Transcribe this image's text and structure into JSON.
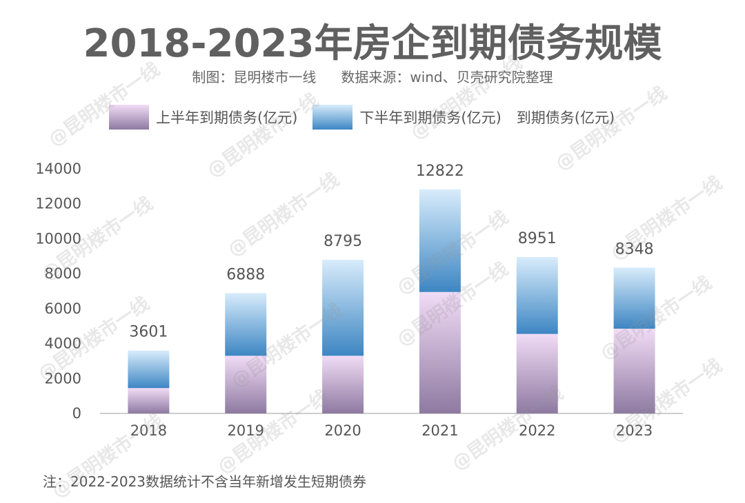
{
  "title": "2018-2023年房企到期债务规模",
  "subtitle": {
    "maker": "制图：昆明楼市一线",
    "source": "数据来源：wind、贝壳研究院整理"
  },
  "watermark": "@昆明楼市一线",
  "note": "注：2022-2023数据统计不含当年新增发生短期债券",
  "colors": {
    "h1_top": "#f1dcf6",
    "h1_bottom": "#8e7aa1",
    "h2_top": "#d8ecfb",
    "h2_bottom": "#3d86c3",
    "axis": "#bdbdbd",
    "text": "#555555"
  },
  "chart_data": {
    "type": "bar",
    "stacked": true,
    "title": "2018-2023年房企到期债务规模",
    "categories": [
      "2018",
      "2019",
      "2020",
      "2021",
      "2022",
      "2023"
    ],
    "series": [
      {
        "name": "上半年到期债务(亿元)",
        "values": [
          1450,
          3300,
          3300,
          6950,
          4550,
          4850
        ]
      },
      {
        "name": "下半年到期债务(亿元)",
        "values": [
          2151,
          3588,
          5495,
          5872,
          4401,
          3498
        ]
      }
    ],
    "totals_name": "到期债务(亿元)",
    "totals": [
      3601,
      6888,
      8795,
      12822,
      8951,
      8348
    ],
    "yticks": [
      0,
      2000,
      4000,
      6000,
      8000,
      10000,
      12000,
      14000
    ],
    "ylim": [
      0,
      14000
    ],
    "grid": false,
    "legend_position": "top"
  }
}
